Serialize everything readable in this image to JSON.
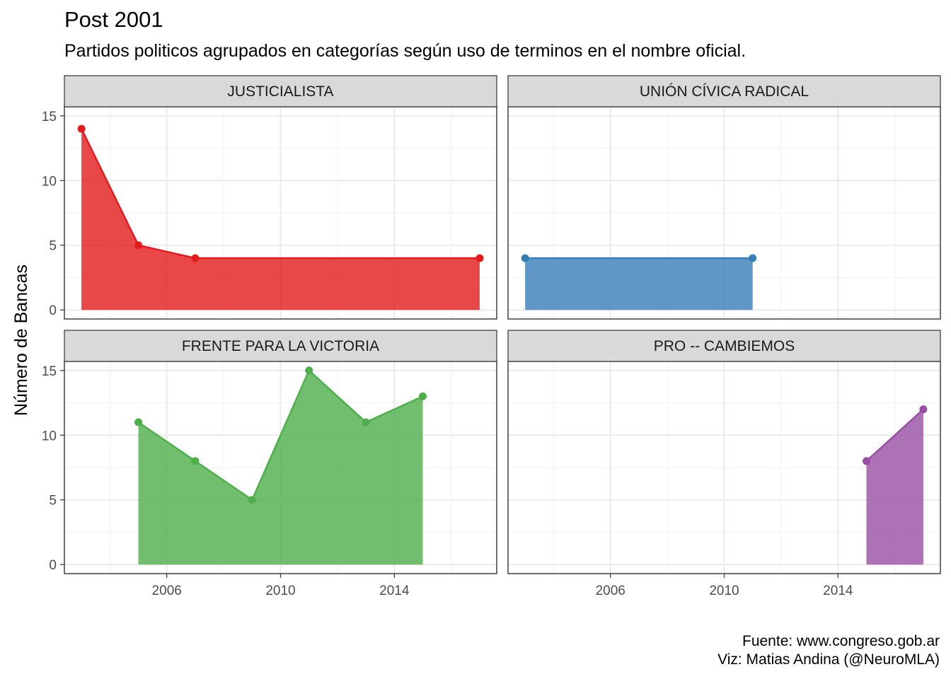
{
  "title": "Post 2001",
  "subtitle": "Partidos politicos agrupados en categorías según uso de terminos en el nombre oficial.",
  "caption_lines": [
    "Fuente: www.congreso.gob.ar",
    "Viz: Matias Andina (@NeuroMLA)"
  ],
  "chart_data": {
    "type": "area",
    "ylabel": "Número de Bancas",
    "xlabel": "",
    "xlim": [
      2002.4,
      2017.6
    ],
    "ylim": [
      -0.7,
      15.7
    ],
    "x_ticks": [
      2006,
      2010,
      2014
    ],
    "y_ticks": [
      0,
      5,
      10,
      15
    ],
    "grid": true,
    "legend": "none",
    "panels": [
      {
        "name": "JUSTICIALISTA",
        "color": "#e41a1c",
        "x": [
          2003,
          2005,
          2007,
          2017
        ],
        "y": [
          14,
          5,
          4,
          4
        ]
      },
      {
        "name": "UNIÓN CÍVICA RADICAL",
        "color": "#377eb8",
        "x": [
          2003,
          2011
        ],
        "y": [
          4,
          4
        ]
      },
      {
        "name": "FRENTE PARA LA VICTORIA",
        "color": "#4daf4a",
        "x": [
          2005,
          2007,
          2009,
          2011,
          2013,
          2015
        ],
        "y": [
          11,
          8,
          5,
          15,
          11,
          13
        ]
      },
      {
        "name": "PRO -- CAMBIEMOS",
        "color": "#984ea3",
        "x": [
          2015,
          2017
        ],
        "y": [
          8,
          12
        ]
      }
    ]
  }
}
